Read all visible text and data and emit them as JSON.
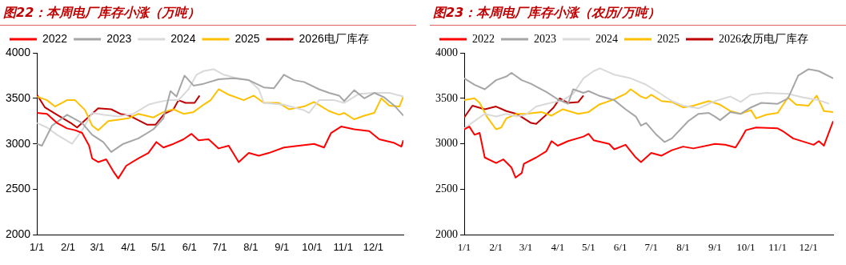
{
  "chart_data": [
    {
      "type": "line",
      "title": "图22：本周电厂库存小涨（万吨）",
      "legend": "top",
      "grid": false,
      "marker": "none",
      "xlim": [
        "--01-01",
        "--12-31"
      ],
      "ylim": [
        2000,
        4000
      ],
      "yticks": [
        2000,
        2500,
        3000,
        3500,
        4000
      ],
      "xticks": [
        {
          "value": "--01-01",
          "label": "1/1"
        },
        {
          "value": "--02-01",
          "label": "2/1"
        },
        {
          "value": "--03-01",
          "label": "3/1"
        },
        {
          "value": "--04-01",
          "label": "4/1"
        },
        {
          "value": "--05-01",
          "label": "5/1"
        },
        {
          "value": "--06-01",
          "label": "6/1"
        },
        {
          "value": "--07-01",
          "label": "7/1"
        },
        {
          "value": "--08-01",
          "label": "8/1"
        },
        {
          "value": "--09-01",
          "label": "9/1"
        },
        {
          "value": "--10-01",
          "label": "10/1"
        },
        {
          "value": "--11-01",
          "label": "11/1"
        },
        {
          "value": "--12-01",
          "label": "12/1"
        }
      ],
      "series": [
        {
          "name": "2022",
          "color": "#ff0000",
          "x": [
            "--01-01",
            "--01-11",
            "--01-21",
            "--01-31",
            "--02-08",
            "--02-15",
            "--02-22",
            "--02-25",
            "--03-02",
            "--03-10",
            "--03-17",
            "--03-22",
            "--03-30",
            "--04-11",
            "--04-21",
            "--04-29",
            "--05-06",
            "--05-16",
            "--05-26",
            "--06-03",
            "--06-10",
            "--06-20",
            "--06-30",
            "--07-10",
            "--07-20",
            "--07-30",
            "--08-09",
            "--08-19",
            "--09-03",
            "--09-18",
            "--10-03",
            "--10-13",
            "--10-20",
            "--10-30",
            "--11-12",
            "--11-27",
            "--12-07",
            "--12-22",
            "--12-29",
            "--12-31"
          ],
          "values": [
            3340,
            3330,
            3230,
            3170,
            3150,
            3120,
            2980,
            2840,
            2800,
            2830,
            2700,
            2620,
            2760,
            2840,
            2900,
            3020,
            2960,
            3000,
            3050,
            3110,
            3040,
            3050,
            2950,
            2980,
            2800,
            2900,
            2870,
            2900,
            2960,
            2980,
            3000,
            2960,
            3120,
            3190,
            3160,
            3140,
            3050,
            3010,
            2970,
            3040
          ]
        },
        {
          "name": "2023",
          "color": "#a6a6a6",
          "x": [
            "--01-01",
            "--01-06",
            "--01-16",
            "--01-31",
            "--02-15",
            "--02-25",
            "--03-07",
            "--03-15",
            "--03-27",
            "--04-11",
            "--04-26",
            "--05-06",
            "--05-13",
            "--05-19",
            "--05-27",
            "--06-05",
            "--06-15",
            "--06-30",
            "--07-15",
            "--07-30",
            "--08-14",
            "--08-24",
            "--09-03",
            "--09-13",
            "--09-23",
            "--10-08",
            "--10-18",
            "--10-28",
            "--11-02",
            "--11-12",
            "--11-22",
            "--12-02",
            "--12-12",
            "--12-22",
            "--12-31"
          ],
          "values": [
            3000,
            2980,
            3200,
            3320,
            3230,
            3100,
            3020,
            2910,
            3000,
            3060,
            3160,
            3280,
            3580,
            3520,
            3750,
            3640,
            3660,
            3710,
            3720,
            3700,
            3620,
            3610,
            3760,
            3700,
            3680,
            3600,
            3560,
            3530,
            3470,
            3590,
            3500,
            3560,
            3510,
            3420,
            3310
          ]
        },
        {
          "name": "2024",
          "color": "#d9d9d9",
          "x": [
            "--01-01",
            "--01-11",
            "--01-21",
            "--02-05",
            "--02-15",
            "--02-25",
            "--03-07",
            "--03-22",
            "--04-06",
            "--04-21",
            "--05-01",
            "--05-11",
            "--05-21",
            "--05-31",
            "--06-08",
            "--06-15",
            "--06-25",
            "--07-05",
            "--07-15",
            "--07-30",
            "--08-09",
            "--08-14",
            "--09-03",
            "--09-23",
            "--09-28",
            "--10-08",
            "--10-23",
            "--11-02",
            "--11-17",
            "--12-02",
            "--12-17",
            "--12-31"
          ],
          "values": [
            3230,
            3180,
            3100,
            3000,
            3150,
            3340,
            3320,
            3300,
            3330,
            3430,
            3460,
            3480,
            3480,
            3600,
            3760,
            3800,
            3820,
            3760,
            3730,
            3700,
            3600,
            3450,
            3430,
            3370,
            3340,
            3480,
            3480,
            3450,
            3550,
            3560,
            3560,
            3520
          ]
        },
        {
          "name": "2025",
          "color": "#ffc000",
          "x": [
            "--01-01",
            "--01-11",
            "--01-19",
            "--01-31",
            "--02-08",
            "--02-18",
            "--02-25",
            "--03-02",
            "--03-12",
            "--04-01",
            "--04-11",
            "--04-26",
            "--05-06",
            "--05-16",
            "--05-26",
            "--06-05",
            "--06-15",
            "--06-22",
            "--06-30",
            "--07-10",
            "--07-25",
            "--08-04",
            "--08-14",
            "--08-29",
            "--09-08",
            "--09-23",
            "--10-03",
            "--10-18",
            "--10-28",
            "--11-02",
            "--11-12",
            "--11-22",
            "--12-02",
            "--12-09",
            "--12-17",
            "--12-27",
            "--12-31"
          ],
          "values": [
            3520,
            3480,
            3410,
            3480,
            3480,
            3370,
            3200,
            3150,
            3250,
            3280,
            3330,
            3290,
            3350,
            3380,
            3330,
            3350,
            3430,
            3480,
            3600,
            3540,
            3480,
            3530,
            3450,
            3450,
            3380,
            3410,
            3460,
            3360,
            3320,
            3340,
            3270,
            3310,
            3340,
            3500,
            3420,
            3410,
            3520
          ]
        },
        {
          "name": "2026电厂库存",
          "color": "#c00000",
          "x": [
            "--01-01",
            "--01-09",
            "--01-21",
            "--02-05",
            "--02-10",
            "--02-22",
            "--03-02",
            "--03-15",
            "--03-24",
            "--04-02",
            "--04-11",
            "--04-20",
            "--04-28",
            "--05-07",
            "--05-16",
            "--05-21",
            "--05-28",
            "--06-06",
            "--06-11"
          ],
          "values": [
            3540,
            3400,
            3320,
            3220,
            3180,
            3300,
            3390,
            3380,
            3330,
            3310,
            3260,
            3210,
            3210,
            3330,
            3380,
            3480,
            3450,
            3450,
            3530
          ]
        }
      ]
    },
    {
      "type": "line",
      "title": "图23：本周电厂库存小涨（农历/万吨）",
      "legend": "top",
      "grid": false,
      "marker": "none",
      "xlim": [
        "--01-01",
        "--12-25"
      ],
      "ylim": [
        2000,
        4000
      ],
      "yticks": [
        2000,
        2500,
        3000,
        3500,
        4000
      ],
      "xticks": [
        {
          "value": "--01-01",
          "label": "1/1"
        },
        {
          "value": "--02-01",
          "label": "2/1"
        },
        {
          "value": "--03-01",
          "label": "3/1"
        },
        {
          "value": "--04-01",
          "label": "4/1"
        },
        {
          "value": "--05-01",
          "label": "5/1"
        },
        {
          "value": "--06-01",
          "label": "6/1"
        },
        {
          "value": "--07-01",
          "label": "7/1"
        },
        {
          "value": "--08-01",
          "label": "8/1"
        },
        {
          "value": "--09-01",
          "label": "9/1"
        },
        {
          "value": "--10-01",
          "label": "10/1"
        },
        {
          "value": "--11-01",
          "label": "11/1"
        },
        {
          "value": "--12-01",
          "label": "12/1"
        }
      ],
      "series": [
        {
          "name": "2022",
          "color": "#ff0000",
          "x": [
            "--01-01",
            "--01-06",
            "--01-11",
            "--01-16",
            "--01-21",
            "--02-01",
            "--02-08",
            "--02-16",
            "--02-20",
            "--02-26",
            "--02-28",
            "--03-11",
            "--03-21",
            "--03-26",
            "--04-01",
            "--04-11",
            "--04-26",
            "--05-01",
            "--05-06",
            "--05-21",
            "--05-26",
            "--06-06",
            "--06-16",
            "--06-21",
            "--07-01",
            "--07-11",
            "--07-21",
            "--08-01",
            "--08-11",
            "--09-01",
            "--09-11",
            "--09-21",
            "--09-26",
            "--10-01",
            "--10-11",
            "--11-01",
            "--11-06",
            "--11-16",
            "--12-06",
            "--12-11",
            "--12-16",
            "--12-25"
          ],
          "values": [
            3160,
            3190,
            3100,
            3120,
            2850,
            2790,
            2830,
            2740,
            2630,
            2680,
            2780,
            2850,
            2920,
            3030,
            2980,
            3030,
            3080,
            3110,
            3040,
            3000,
            2940,
            2990,
            2850,
            2800,
            2900,
            2870,
            2930,
            2970,
            2950,
            3000,
            2990,
            2960,
            3050,
            3150,
            3180,
            3170,
            3140,
            3060,
            2990,
            3030,
            2980,
            3250
          ]
        },
        {
          "name": "2023",
          "color": "#a6a6a6",
          "x": [
            "--01-01",
            "--01-11",
            "--01-21",
            "--02-01",
            "--02-11",
            "--02-16",
            "--02-26",
            "--03-06",
            "--03-11",
            "--03-21",
            "--04-01",
            "--04-11",
            "--04-16",
            "--04-26",
            "--05-01",
            "--05-11",
            "--05-26",
            "--06-06",
            "--06-16",
            "--06-21",
            "--06-26",
            "--07-06",
            "--07-14",
            "--07-21",
            "--08-06",
            "--08-16",
            "--08-26",
            "--09-01",
            "--09-06",
            "--09-16",
            "--09-26",
            "--10-06",
            "--10-16",
            "--11-01",
            "--11-11",
            "--11-21",
            "--12-01",
            "--12-11",
            "--12-25"
          ],
          "values": [
            3720,
            3650,
            3600,
            3700,
            3740,
            3780,
            3700,
            3660,
            3630,
            3570,
            3490,
            3440,
            3600,
            3560,
            3580,
            3530,
            3480,
            3380,
            3300,
            3200,
            3230,
            3100,
            3020,
            3060,
            3250,
            3330,
            3340,
            3300,
            3260,
            3350,
            3330,
            3400,
            3450,
            3440,
            3500,
            3750,
            3820,
            3800,
            3720
          ]
        },
        {
          "name": "2024",
          "color": "#d9d9d9",
          "x": [
            "--01-01",
            "--01-11",
            "--01-21",
            "--02-01",
            "--02-11",
            "--02-21",
            "--03-01",
            "--03-11",
            "--03-21",
            "--04-06",
            "--04-16",
            "--04-26",
            "--05-06",
            "--05-12",
            "--05-26",
            "--06-11",
            "--06-26",
            "--07-06",
            "--07-21",
            "--08-01",
            "--08-16",
            "--09-01",
            "--09-16",
            "--09-26",
            "--10-06",
            "--10-21",
            "--11-11",
            "--11-26",
            "--12-11",
            "--12-21"
          ],
          "values": [
            3170,
            3250,
            3330,
            3300,
            3330,
            3300,
            3320,
            3410,
            3440,
            3480,
            3550,
            3720,
            3800,
            3830,
            3760,
            3720,
            3650,
            3580,
            3470,
            3420,
            3390,
            3470,
            3520,
            3460,
            3540,
            3560,
            3550,
            3510,
            3480,
            3440
          ]
        },
        {
          "name": "2025",
          "color": "#ffc000",
          "x": [
            "--01-01",
            "--01-11",
            "--01-16",
            "--01-23",
            "--02-01",
            "--02-06",
            "--02-11",
            "--02-21",
            "--03-01",
            "--03-16",
            "--03-26",
            "--04-06",
            "--04-21",
            "--05-01",
            "--05-11",
            "--05-26",
            "--06-06",
            "--06-11",
            "--06-21",
            "--06-26",
            "--07-01",
            "--07-11",
            "--07-21",
            "--08-01",
            "--08-11",
            "--08-26",
            "--09-06",
            "--09-16",
            "--09-26",
            "--10-06",
            "--10-11",
            "--10-21",
            "--11-01",
            "--11-11",
            "--11-19",
            "--12-01",
            "--12-09",
            "--12-16",
            "--12-25"
          ],
          "values": [
            3480,
            3500,
            3450,
            3300,
            3160,
            3180,
            3280,
            3330,
            3330,
            3350,
            3310,
            3380,
            3330,
            3350,
            3430,
            3490,
            3550,
            3600,
            3520,
            3500,
            3540,
            3470,
            3460,
            3400,
            3420,
            3470,
            3430,
            3360,
            3330,
            3370,
            3280,
            3320,
            3340,
            3510,
            3430,
            3420,
            3530,
            3360,
            3350
          ]
        },
        {
          "name": "2026农历电厂库存",
          "color": "#c00000",
          "x": [
            "--01-01",
            "--01-09",
            "--01-21",
            "--02-01",
            "--02-11",
            "--02-21",
            "--02-28",
            "--03-06",
            "--03-11",
            "--03-19",
            "--03-28",
            "--04-03",
            "--04-11",
            "--04-21",
            "--04-26"
          ],
          "values": [
            3290,
            3420,
            3380,
            3410,
            3360,
            3330,
            3280,
            3230,
            3220,
            3300,
            3400,
            3500,
            3450,
            3460,
            3530
          ]
        }
      ]
    }
  ]
}
